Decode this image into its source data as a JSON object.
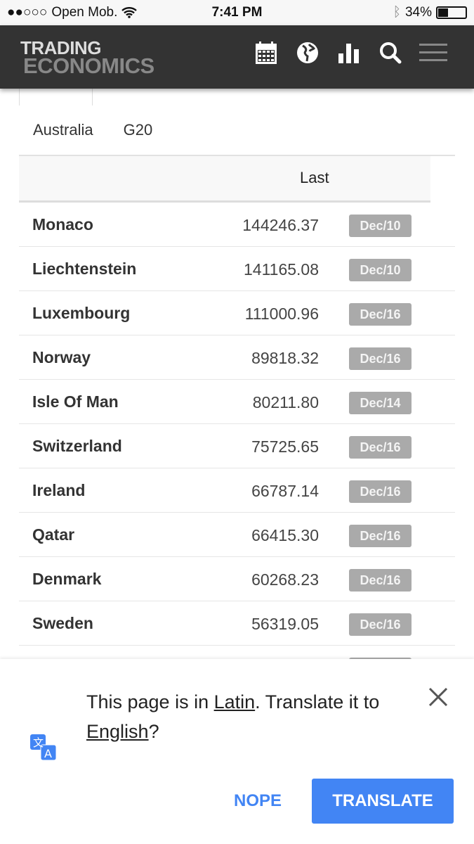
{
  "status_bar": {
    "carrier": "Open Mob.",
    "time": "7:41 PM",
    "battery": "34%",
    "battery_level": 0.34
  },
  "header": {
    "logo_line1": "TRADING",
    "logo_line2": "ECONOMICS",
    "icons": [
      "calendar-icon",
      "globe-icon",
      "bar-chart-icon",
      "search-icon",
      "menu-icon"
    ]
  },
  "filters": [
    "Australia",
    "G20"
  ],
  "table": {
    "column_header": "Last",
    "rows": [
      {
        "country": "Monaco",
        "last": "144246.37",
        "date": "Dec/10"
      },
      {
        "country": "Liechtenstein",
        "last": "141165.08",
        "date": "Dec/10"
      },
      {
        "country": "Luxembourg",
        "last": "111000.96",
        "date": "Dec/16"
      },
      {
        "country": "Norway",
        "last": "89818.32",
        "date": "Dec/16"
      },
      {
        "country": "Isle Of Man",
        "last": "80211.80",
        "date": "Dec/14"
      },
      {
        "country": "Switzerland",
        "last": "75725.65",
        "date": "Dec/16"
      },
      {
        "country": "Ireland",
        "last": "66787.14",
        "date": "Dec/16"
      },
      {
        "country": "Qatar",
        "last": "66415.30",
        "date": "Dec/16"
      },
      {
        "country": "Denmark",
        "last": "60268.23",
        "date": "Dec/16"
      },
      {
        "country": "Sweden",
        "last": "56319.05",
        "date": "Dec/16"
      }
    ]
  },
  "translate_bar": {
    "text_before": "This page is in ",
    "source_lang": "Latin",
    "text_mid": ". Translate it to ",
    "target_lang": "English",
    "text_end": "?",
    "nope_label": "NOPE",
    "translate_label": "TRANSLATE",
    "accent": "#4285f4"
  }
}
